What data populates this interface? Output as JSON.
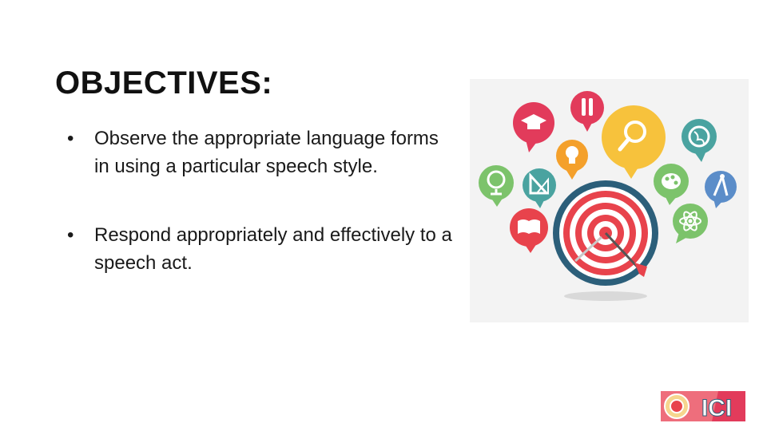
{
  "slide": {
    "title": "OBJECTIVES:",
    "bullets": [
      {
        "marker": "•",
        "text": "Observe the appropriate language forms in using a particular speech style."
      },
      {
        "marker": "•",
        "text": "Respond appropriately and effectively to a speech act."
      }
    ]
  },
  "illustration": {
    "icons": [
      "graduation-cap-icon",
      "pencils-icon",
      "magnifier-icon",
      "globe-icon",
      "lightbulb-icon",
      "palette-icon",
      "globe-stand-icon",
      "set-squares-icon",
      "compass-icon",
      "atom-icon",
      "book-icon",
      "target-icon",
      "arrow-icon"
    ],
    "colors": {
      "target_ring_dark": "#2c5f7a",
      "target_red": "#e8434c",
      "pink": "#e23b5b",
      "yellow": "#f7c23c",
      "teal": "#4aa3a0",
      "green": "#7cc36b",
      "orange": "#f4a02b",
      "blue": "#5b8dc9"
    }
  },
  "logo": {
    "text": "ICI"
  }
}
